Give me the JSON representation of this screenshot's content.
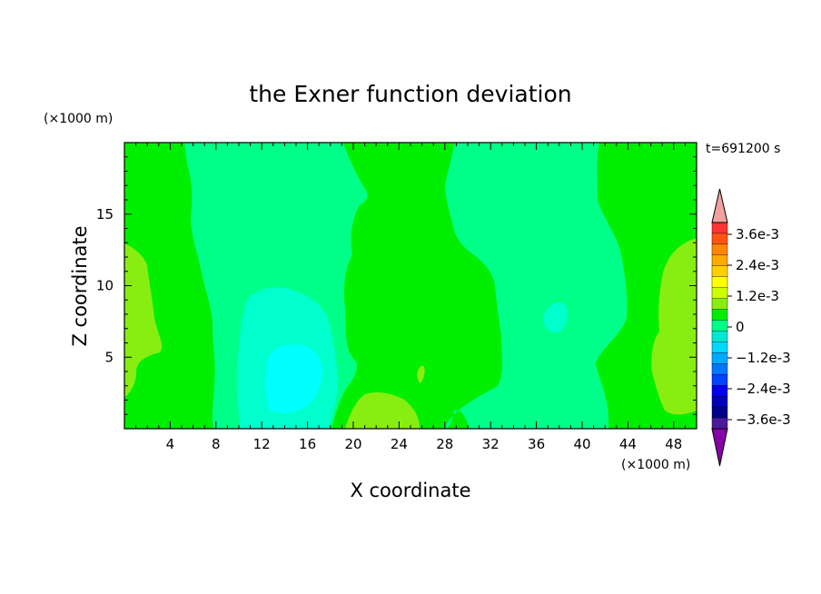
{
  "chart_data": {
    "type": "contour",
    "title": "the Exner function deviation",
    "xlabel": "X coordinate",
    "ylabel": "Z coordinate",
    "x_unit": "(×1000 m)",
    "y_unit": "(×1000 m)",
    "time_label": "t=691200 s",
    "xlim": [
      0,
      50
    ],
    "ylim": [
      0,
      20
    ],
    "x_ticks": [
      4,
      8,
      12,
      16,
      20,
      24,
      28,
      32,
      36,
      40,
      44,
      48
    ],
    "y_ticks": [
      5,
      10,
      15
    ],
    "colorbar": {
      "labels": [
        "3.6e-3",
        "2.4e-3",
        "1.2e-3",
        "0",
        "−1.2e-3",
        "−2.4e-3",
        "−3.6e-3"
      ],
      "levels_top_to_bottom": [
        "#ff3333",
        "#ff5511",
        "#ff8800",
        "#ffaa00",
        "#ffd000",
        "#ffff00",
        "#ccff00",
        "#88ee11",
        "#00ee00",
        "#00ff88",
        "#00e8d0",
        "#00d8ff",
        "#00aaff",
        "#0077ff",
        "#0044ff",
        "#0000ee",
        "#0000bb",
        "#00008a",
        "#4a1a9a"
      ],
      "over_color": "#f4a0a0",
      "under_color": "#8800aa"
    },
    "field_colors": {
      "positive_small": "#88ee11",
      "zero": "#00ee00",
      "negative_1": "#00ff88",
      "negative_2": "#00ffcc",
      "negative_3": "#00ffff"
    },
    "regions": [
      {
        "level": "zero",
        "desc": "background (about 0)"
      },
      {
        "level": "negative_1",
        "x": [
          5,
          20
        ],
        "z": [
          0,
          20
        ]
      },
      {
        "level": "negative_1",
        "x": [
          29,
          42
        ],
        "z": [
          0,
          20
        ]
      },
      {
        "level": "negative_2",
        "x": [
          10,
          19
        ],
        "z": [
          0,
          10
        ]
      },
      {
        "level": "negative_3",
        "x": [
          12,
          17
        ],
        "z": [
          1.5,
          6
        ]
      },
      {
        "level": "negative_2",
        "x": [
          36.5,
          39
        ],
        "z": [
          6.5,
          8.5
        ]
      },
      {
        "level": "positive_small",
        "x": [
          0,
          3.5
        ],
        "z": [
          2.5,
          13
        ]
      },
      {
        "level": "positive_small",
        "x": [
          46,
          50
        ],
        "z": [
          1.5,
          13
        ]
      },
      {
        "level": "positive_small",
        "x": [
          19.5,
          26
        ],
        "z": [
          0,
          2.5
        ]
      }
    ]
  }
}
